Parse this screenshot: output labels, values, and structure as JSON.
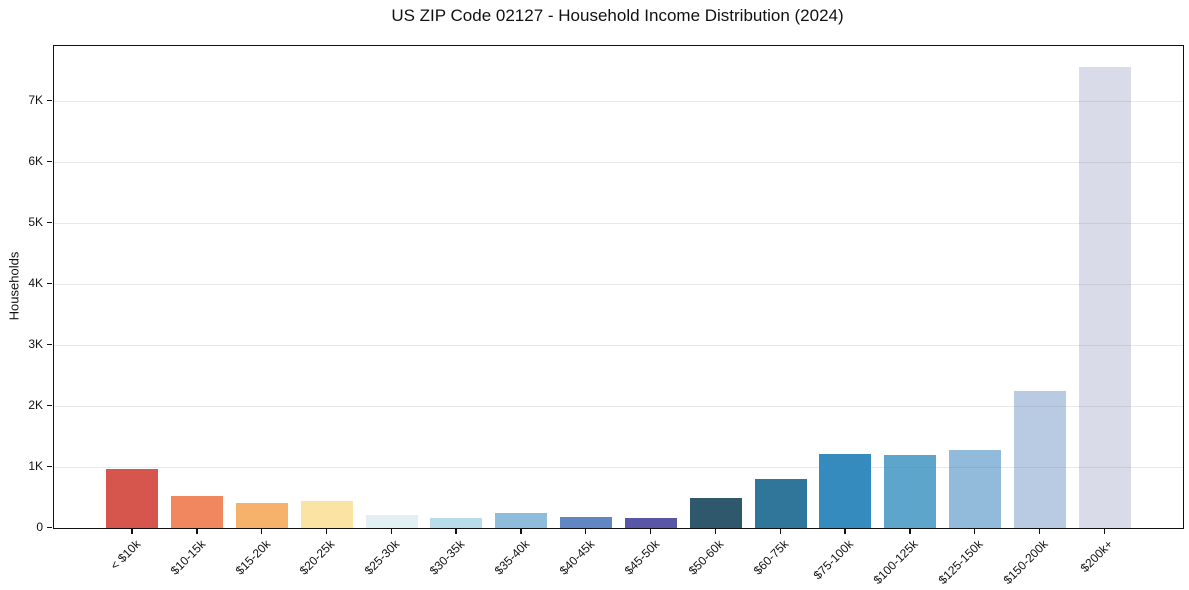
{
  "title": "US ZIP Code 02127 - Household Income Distribution (2024)",
  "chart_data": {
    "type": "bar",
    "title": "US ZIP Code 02127 - Household Income Distribution (2024)",
    "xlabel": "",
    "ylabel": "Households",
    "ylim": [
      0,
      7900
    ],
    "grid": true,
    "legend": "none",
    "ytick_values": [
      0,
      1000,
      2000,
      3000,
      4000,
      5000,
      6000,
      7000
    ],
    "ytick_labels": [
      "0",
      "1K",
      "2K",
      "3K",
      "4K",
      "5K",
      "6K",
      "7K"
    ],
    "categories": [
      "< $10k",
      "$10-15k",
      "$15-20k",
      "$20-25k",
      "$25-30k",
      "$30-35k",
      "$35-40k",
      "$40-45k",
      "$45-50k",
      "$50-60k",
      "$60-75k",
      "$75-100k",
      "$100-125k",
      "$125-150k",
      "$150-200k",
      "$200k+"
    ],
    "values": [
      960,
      520,
      410,
      450,
      210,
      170,
      240,
      175,
      170,
      500,
      800,
      1220,
      1190,
      1280,
      2240,
      7560
    ],
    "bar_colors": [
      "#d6564e",
      "#f0875f",
      "#f6b26b",
      "#fbe3a3",
      "#e2f0f4",
      "#b9dcea",
      "#8ebddc",
      "#6186c4",
      "#5955a7",
      "#2f586c",
      "#30759a",
      "#358bbe",
      "#5da5ca",
      "#91badb",
      "#b9cbe2",
      "#d9dbe9"
    ]
  },
  "colors": {
    "spine": "#111111",
    "grid_rgba": "rgba(130,130,130,0.18)",
    "background": "#ffffff",
    "text": "#111111"
  }
}
